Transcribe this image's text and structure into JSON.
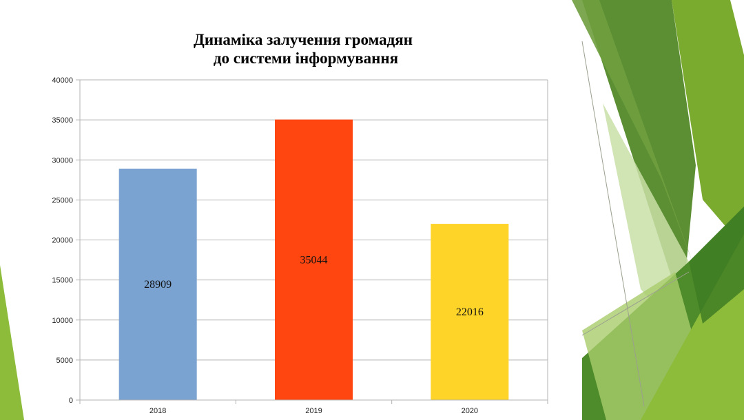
{
  "chart_data": {
    "type": "bar",
    "title_lines": [
      "Динаміка залучення громадян",
      "до системи інформування"
    ],
    "categories": [
      "2018",
      "2019",
      "2020"
    ],
    "values": [
      28909,
      35044,
      22016
    ],
    "data_labels": [
      "28909",
      "35044",
      "22016"
    ],
    "colors": [
      "#7ba3d1",
      "#ff4611",
      "#fed428"
    ],
    "ylim": [
      0,
      40000
    ],
    "yticks": [
      0,
      5000,
      10000,
      15000,
      20000,
      25000,
      30000,
      35000,
      40000
    ],
    "ytick_labels": [
      "0",
      "5000",
      "10000",
      "15000",
      "20000",
      "25000",
      "30000",
      "35000",
      "40000"
    ],
    "grid": true,
    "xlabel": "",
    "ylabel": ""
  },
  "decoration": {
    "theme": "green-facets",
    "colors": [
      "#6f9e3e",
      "#4e8b2a",
      "#8dbb3a",
      "#a9cc6c",
      "#c9dfa7",
      "#3f7d24"
    ]
  }
}
